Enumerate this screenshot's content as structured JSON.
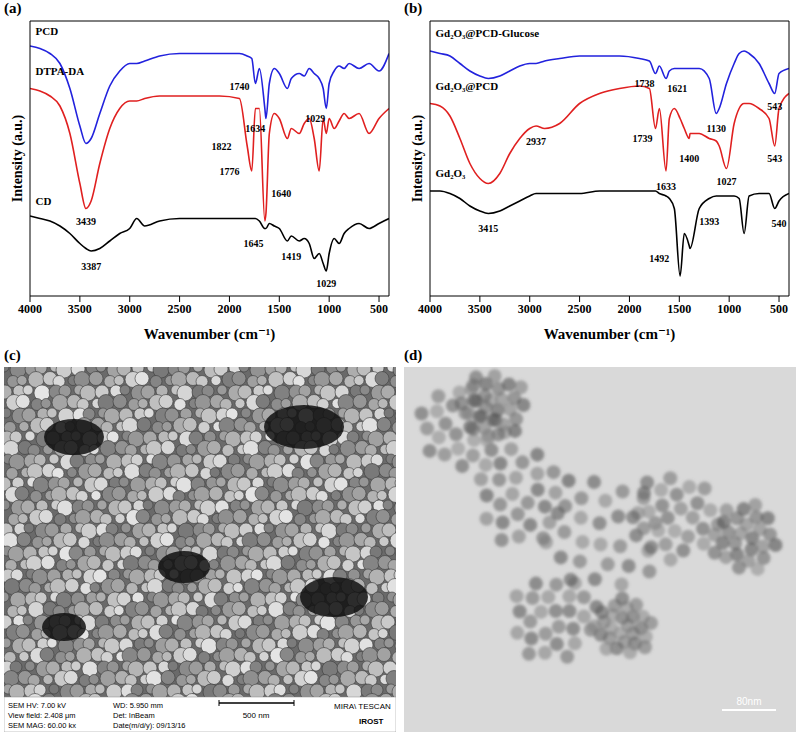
{
  "chart_data": [
    {
      "type": "line",
      "panel_label": "(a)",
      "x_label": "Wavenumber (cm⁻¹)",
      "y_label": "Intensity (a.u.)",
      "x": [
        4000,
        3900,
        3800,
        3700,
        3600,
        3500,
        3439,
        3387,
        3300,
        3200,
        3100,
        3000,
        2930,
        2850,
        2700,
        2500,
        2300,
        2100,
        1900,
        1822,
        1776,
        1740,
        1700,
        1645,
        1634,
        1600,
        1550,
        1500,
        1419,
        1380,
        1300,
        1250,
        1200,
        1150,
        1100,
        1060,
        1029,
        1000,
        950,
        900,
        850,
        800,
        700,
        600,
        500,
        400
      ],
      "xlim": [
        4000,
        400
      ],
      "xticks": [
        4000,
        3500,
        3000,
        2500,
        2000,
        1500,
        1000,
        500
      ],
      "ylim": [
        -5,
        105
      ],
      "tick_labels": "x",
      "series": [
        {
          "name": "PCD",
          "color": "#2222dd",
          "label_x": 3950,
          "label_y": 101,
          "values": [
            95,
            94,
            92,
            88,
            78,
            63,
            56,
            58,
            68,
            79,
            85,
            88,
            88,
            89,
            91,
            92,
            92,
            92,
            92,
            91,
            90,
            80,
            86,
            70,
            66,
            80,
            86,
            84,
            78,
            82,
            84,
            83,
            86,
            84,
            82,
            78,
            70,
            80,
            85,
            87,
            86,
            88,
            86,
            88,
            85,
            92
          ]
        },
        {
          "name": "DTPA-DA",
          "color": "#e02020",
          "label_x": 3950,
          "label_y": 85,
          "values": [
            78,
            77,
            75,
            71,
            60,
            40,
            30,
            33,
            48,
            62,
            70,
            73,
            73,
            74,
            75,
            75,
            75,
            75,
            74,
            55,
            45,
            70,
            70,
            25,
            28,
            60,
            68,
            66,
            58,
            62,
            60,
            64,
            66,
            58,
            45,
            66,
            60,
            66,
            62,
            65,
            68,
            66,
            68,
            60,
            66,
            70
          ]
        },
        {
          "name": "CD",
          "color": "#000000",
          "label_x": 3950,
          "label_y": 33,
          "values": [
            27,
            26,
            25,
            23,
            20,
            16,
            14,
            13,
            14,
            17,
            20,
            22,
            26,
            23,
            25,
            26,
            26,
            26,
            26,
            26,
            26,
            26,
            25,
            22,
            22,
            24,
            23,
            22,
            17,
            19,
            17,
            18,
            16,
            10,
            12,
            8,
            5,
            12,
            18,
            16,
            20,
            22,
            24,
            22,
            24,
            26
          ]
        }
      ],
      "annotations": [
        {
          "text": "1740",
          "x": 1900,
          "y": 79
        },
        {
          "text": "1634",
          "x": 1740,
          "y": 62
        },
        {
          "text": "1029",
          "x": 1140,
          "y": 66
        },
        {
          "text": "1822",
          "x": 2080,
          "y": 55
        },
        {
          "text": "1776",
          "x": 2000,
          "y": 45
        },
        {
          "text": "1640",
          "x": 1480,
          "y": 36
        },
        {
          "text": "3439",
          "x": 3439,
          "y": 25
        },
        {
          "text": "3387",
          "x": 3387,
          "y": 7
        },
        {
          "text": "1645",
          "x": 1760,
          "y": 16
        },
        {
          "text": "1419",
          "x": 1380,
          "y": 11
        },
        {
          "text": "1029",
          "x": 1029,
          "y": 0
        }
      ]
    },
    {
      "type": "line",
      "panel_label": "(b)",
      "x_label": "Wavenumber (cm⁻¹)",
      "y_label": "Intensity (a.u.)",
      "x": [
        4000,
        3900,
        3800,
        3700,
        3600,
        3500,
        3415,
        3300,
        3200,
        3100,
        3000,
        2937,
        2850,
        2700,
        2500,
        2300,
        2100,
        1900,
        1800,
        1739,
        1700,
        1633,
        1600,
        1550,
        1492,
        1450,
        1400,
        1393,
        1300,
        1200,
        1130,
        1100,
        1027,
        950,
        900,
        850,
        800,
        700,
        600,
        543,
        500,
        400
      ],
      "xlim": [
        4000,
        400
      ],
      "xticks": [
        4000,
        3500,
        3000,
        2500,
        2000,
        1500,
        1000,
        500
      ],
      "ylim": [
        -5,
        105
      ],
      "tick_labels": "x",
      "series": [
        {
          "name": "Gd₂O₃@PCD-Glucose",
          "color": "#2222dd",
          "label_x": 3950,
          "label_y": 100,
          "values": [
            93,
            92,
            91,
            88,
            85,
            83,
            82,
            83,
            85,
            87,
            88,
            88,
            89,
            90,
            91,
            91,
            91,
            90,
            89,
            84,
            87,
            82,
            85,
            86,
            86,
            86,
            86,
            86,
            86,
            82,
            68,
            70,
            80,
            88,
            92,
            93,
            92,
            88,
            80,
            76,
            84,
            86
          ]
        },
        {
          "name": "Gd₂O₃@PCD",
          "color": "#e02020",
          "label_x": 3950,
          "label_y": 79,
          "values": [
            72,
            71,
            67,
            58,
            48,
            42,
            40,
            44,
            52,
            58,
            62,
            63,
            62,
            64,
            72,
            76,
            78,
            79,
            78,
            62,
            70,
            45,
            66,
            70,
            66,
            62,
            58,
            60,
            60,
            58,
            57,
            55,
            46,
            64,
            70,
            72,
            72,
            70,
            66,
            55,
            70,
            76
          ]
        },
        {
          "name": "Gd₂O₃",
          "color": "#000000",
          "label_x": 3950,
          "label_y": 44,
          "values": [
            37,
            37,
            36,
            34,
            31,
            29,
            28,
            29,
            31,
            33,
            35,
            36,
            36,
            36,
            36,
            37,
            37,
            37,
            37,
            37,
            36,
            35,
            34,
            30,
            3,
            20,
            15,
            14,
            30,
            34,
            35,
            35,
            35,
            35,
            34,
            20,
            35,
            36,
            36,
            30,
            33,
            36
          ]
        }
      ],
      "annotations": [
        {
          "text": "1738",
          "x": 1850,
          "y": 80
        },
        {
          "text": "1621",
          "x": 1520,
          "y": 78
        },
        {
          "text": "1130",
          "x": 1130,
          "y": 62
        },
        {
          "text": "543",
          "x": 543,
          "y": 71
        },
        {
          "text": "2937",
          "x": 2937,
          "y": 57
        },
        {
          "text": "1739",
          "x": 1870,
          "y": 58
        },
        {
          "text": "1633",
          "x": 1633,
          "y": 39
        },
        {
          "text": "1400",
          "x": 1400,
          "y": 50
        },
        {
          "text": "1027",
          "x": 1027,
          "y": 41
        },
        {
          "text": "543",
          "x": 543,
          "y": 50
        },
        {
          "text": "3415",
          "x": 3415,
          "y": 22
        },
        {
          "text": "1492",
          "x": 1700,
          "y": 10
        },
        {
          "text": "1393",
          "x": 1200,
          "y": 25
        },
        {
          "text": "540",
          "x": 500,
          "y": 24
        }
      ]
    }
  ],
  "images": [
    {
      "panel_label": "(c)",
      "kind": "SEM",
      "info": [
        [
          "SEM HV: 7.00 kV",
          "WD: 5.950 mm"
        ],
        [
          "View field: 2.408 μm",
          "Det: InBeam"
        ],
        [
          "SEM MAG: 60.00 kx",
          "Date(m/d/y): 09/13/16"
        ]
      ],
      "scale_bar": "500 nm",
      "brand": "MIRA\\ TESCAN",
      "institute": "IROST"
    },
    {
      "panel_label": "(d)",
      "kind": "TEM",
      "scale_bar": "80nm"
    }
  ]
}
